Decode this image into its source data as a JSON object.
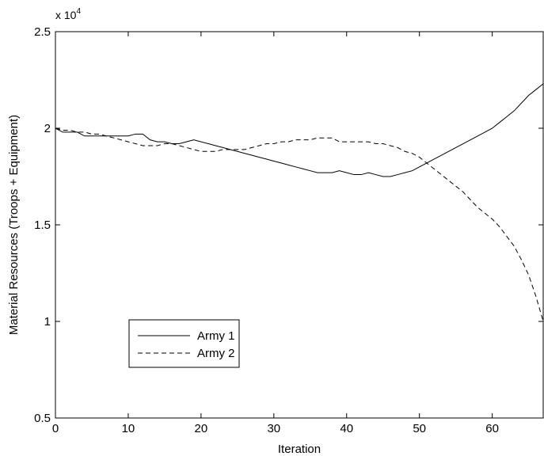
{
  "chart_data": {
    "type": "line",
    "title": "",
    "xlabel": "Iteration",
    "ylabel": "Material Resources (Troops + Equipment)",
    "exponent_label": "x 10",
    "exponent_power": "4",
    "xlim": [
      0,
      67
    ],
    "ylim": [
      0.5,
      2.5
    ],
    "xticks": [
      0,
      10,
      20,
      30,
      40,
      50,
      60
    ],
    "yticks": [
      0.5,
      1,
      1.5,
      2,
      2.5
    ],
    "xtick_labels": [
      "0",
      "10",
      "20",
      "30",
      "40",
      "50",
      "60"
    ],
    "ytick_labels": [
      "0.5",
      "1",
      "1.5",
      "2",
      "2.5"
    ],
    "grid": false,
    "legend_position": "lower-left",
    "series": [
      {
        "name": "Army 1",
        "style": "solid",
        "color": "#000000",
        "x": [
          0,
          1,
          2,
          3,
          4,
          5,
          6,
          7,
          8,
          9,
          10,
          11,
          12,
          13,
          14,
          15,
          16,
          17,
          18,
          19,
          20,
          21,
          22,
          23,
          24,
          25,
          26,
          27,
          28,
          29,
          30,
          31,
          32,
          33,
          34,
          35,
          36,
          37,
          38,
          39,
          40,
          41,
          42,
          43,
          44,
          45,
          46,
          47,
          48,
          49,
          50,
          51,
          52,
          53,
          54,
          55,
          56,
          57,
          58,
          59,
          60,
          61,
          62,
          63,
          64,
          65,
          66,
          67
        ],
        "y": [
          2.0,
          1.98,
          1.98,
          1.98,
          1.96,
          1.96,
          1.96,
          1.96,
          1.96,
          1.96,
          1.96,
          1.97,
          1.97,
          1.94,
          1.93,
          1.93,
          1.92,
          1.92,
          1.93,
          1.94,
          1.93,
          1.92,
          1.91,
          1.9,
          1.89,
          1.88,
          1.87,
          1.86,
          1.85,
          1.84,
          1.83,
          1.82,
          1.81,
          1.8,
          1.79,
          1.78,
          1.77,
          1.77,
          1.77,
          1.78,
          1.77,
          1.76,
          1.76,
          1.77,
          1.76,
          1.75,
          1.75,
          1.76,
          1.77,
          1.78,
          1.8,
          1.82,
          1.84,
          1.86,
          1.88,
          1.9,
          1.92,
          1.94,
          1.96,
          1.98,
          2.0,
          2.03,
          2.06,
          2.09,
          2.13,
          2.17,
          2.2,
          2.23
        ]
      },
      {
        "name": "Army 2",
        "style": "dashed",
        "color": "#000000",
        "x": [
          0,
          1,
          2,
          3,
          4,
          5,
          6,
          7,
          8,
          9,
          10,
          11,
          12,
          13,
          14,
          15,
          16,
          17,
          18,
          19,
          20,
          21,
          22,
          23,
          24,
          25,
          26,
          27,
          28,
          29,
          30,
          31,
          32,
          33,
          34,
          35,
          36,
          37,
          38,
          39,
          40,
          41,
          42,
          43,
          44,
          45,
          46,
          47,
          48,
          49,
          50,
          51,
          52,
          53,
          54,
          55,
          56,
          57,
          58,
          59,
          60,
          61,
          62,
          63,
          64,
          65,
          66,
          67
        ],
        "y": [
          2.0,
          1.99,
          1.99,
          1.98,
          1.98,
          1.97,
          1.97,
          1.96,
          1.95,
          1.94,
          1.93,
          1.92,
          1.91,
          1.91,
          1.91,
          1.92,
          1.92,
          1.91,
          1.9,
          1.89,
          1.88,
          1.88,
          1.88,
          1.89,
          1.89,
          1.89,
          1.89,
          1.9,
          1.91,
          1.92,
          1.92,
          1.93,
          1.93,
          1.94,
          1.94,
          1.94,
          1.95,
          1.95,
          1.95,
          1.93,
          1.93,
          1.93,
          1.93,
          1.93,
          1.92,
          1.92,
          1.91,
          1.9,
          1.88,
          1.87,
          1.85,
          1.82,
          1.79,
          1.76,
          1.73,
          1.7,
          1.67,
          1.63,
          1.59,
          1.56,
          1.53,
          1.49,
          1.44,
          1.39,
          1.32,
          1.24,
          1.13,
          1.0
        ]
      }
    ]
  }
}
